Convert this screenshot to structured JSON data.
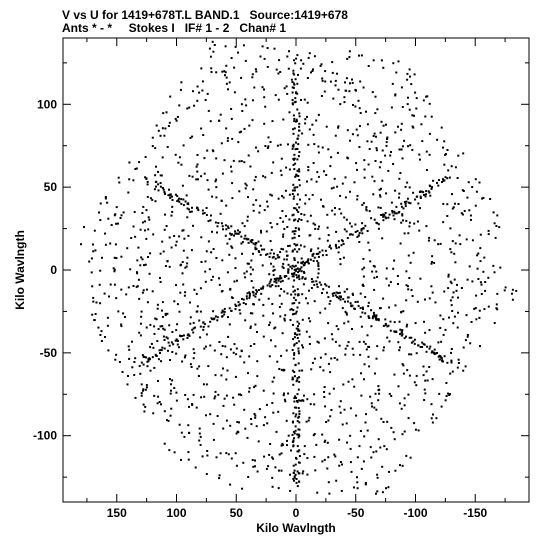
{
  "header": {
    "line1": "V vs U for 1419+678T.L BAND.1   Source:1419+678",
    "line2": "Ants * - *     Stokes I   IF# 1 - 2   Chan# 1"
  },
  "chart_data": {
    "type": "scatter",
    "xlabel": "Kilo Wavlngth",
    "ylabel": "Kilo Wavlngth",
    "xlim": [
      195,
      -195
    ],
    "ylim": [
      -140,
      140
    ],
    "x_reversed": true,
    "x_ticks": [
      150,
      100,
      50,
      0,
      -50,
      -100,
      -150
    ],
    "x_tick_labels": [
      "150",
      "100",
      "50",
      "0",
      "-50",
      "-100",
      "-150"
    ],
    "y_ticks": [
      -100,
      -50,
      0,
      50,
      100
    ],
    "y_tick_labels": [
      "-100",
      "-50",
      "0",
      "50",
      "100"
    ],
    "grid": false,
    "point_color": "#000000",
    "arms": [
      {
        "angle_deg": 90,
        "max_kilo_wavelength": 130
      },
      {
        "angle_deg": 30,
        "max_kilo_wavelength": 150
      },
      {
        "angle_deg": 150,
        "max_kilo_wavelength": 150
      }
    ],
    "hexagon_vertices_kilo_wavelength": [
      [
        185,
        20
      ],
      [
        170,
        -35
      ],
      [
        90,
        -130
      ],
      [
        -75,
        -138
      ],
      [
        -185,
        -15
      ],
      [
        -170,
        35
      ],
      [
        -90,
        130
      ],
      [
        75,
        138
      ]
    ]
  }
}
